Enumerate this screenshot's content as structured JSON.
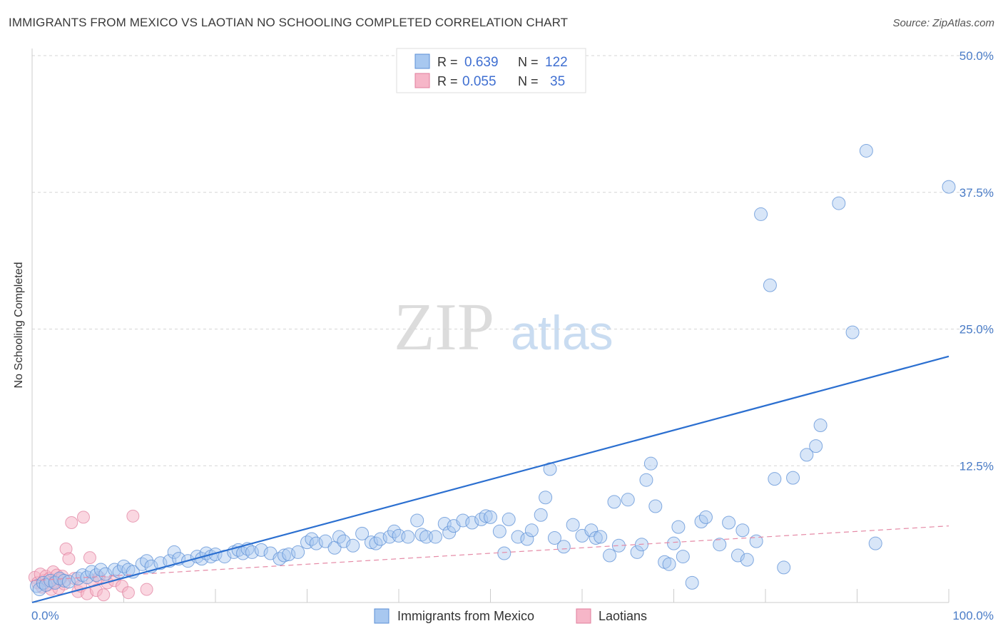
{
  "header": {
    "title": "IMMIGRANTS FROM MEXICO VS LAOTIAN NO SCHOOLING COMPLETED CORRELATION CHART",
    "source": "Source: ZipAtlas.com"
  },
  "watermark": {
    "zip": "ZIP",
    "atlas": "atlas"
  },
  "colors": {
    "series1_fill": "#a8c8f0",
    "series1_stroke": "#5b8fd6",
    "series1_line": "#2b6fd0",
    "series2_fill": "#f6b6c8",
    "series2_stroke": "#e07d9c",
    "series2_line": "#e58aa6",
    "accent_text": "#3f6fd1"
  },
  "legend": {
    "rows": [
      {
        "r_label": "R =",
        "r_value": "0.639",
        "n_label": "N =",
        "n_value": "122"
      },
      {
        "r_label": "R =",
        "r_value": "0.055",
        "n_label": "N =",
        "n_value": "35"
      }
    ]
  },
  "bottom_legend": [
    "Immigrants from Mexico",
    "Laotians"
  ],
  "chart_data": {
    "type": "scatter",
    "title": "IMMIGRANTS FROM MEXICO VS LAOTIAN NO SCHOOLING COMPLETED CORRELATION CHART",
    "xlabel": "",
    "ylabel": "No Schooling Completed",
    "xlim": [
      0,
      100
    ],
    "ylim": [
      0,
      50
    ],
    "x_tick_labels": [
      "0.0%",
      "100.0%"
    ],
    "y_ticks": [
      12.5,
      25.0,
      37.5,
      50.0
    ],
    "y_tick_labels": [
      "12.5%",
      "25.0%",
      "37.5%",
      "50.0%"
    ],
    "grid": "horizontal dashed",
    "legend_position": "top-center",
    "series": [
      {
        "name": "Immigrants from Mexico",
        "r": 0.639,
        "n": 122,
        "trend": {
          "x": [
            0,
            100
          ],
          "y": [
            0.0,
            22.5
          ]
        },
        "points": [
          [
            0.5,
            1.5
          ],
          [
            0.8,
            1.2
          ],
          [
            1.2,
            1.8
          ],
          [
            1.5,
            1.6
          ],
          [
            2.0,
            2.0
          ],
          [
            2.5,
            1.8
          ],
          [
            3.0,
            2.2
          ],
          [
            3.5,
            2.0
          ],
          [
            4.0,
            1.9
          ],
          [
            5.0,
            2.2
          ],
          [
            5.5,
            2.5
          ],
          [
            6.0,
            2.3
          ],
          [
            6.5,
            2.8
          ],
          [
            7.0,
            2.5
          ],
          [
            7.5,
            3.0
          ],
          [
            8.0,
            2.6
          ],
          [
            9.0,
            3.0
          ],
          [
            9.5,
            2.8
          ],
          [
            10.0,
            3.3
          ],
          [
            10.5,
            3.0
          ],
          [
            11.0,
            2.8
          ],
          [
            12.0,
            3.5
          ],
          [
            12.5,
            3.8
          ],
          [
            13.0,
            3.3
          ],
          [
            14.0,
            3.6
          ],
          [
            15.0,
            3.8
          ],
          [
            15.5,
            4.6
          ],
          [
            16.0,
            4.0
          ],
          [
            17.0,
            3.8
          ],
          [
            18.0,
            4.2
          ],
          [
            18.5,
            4.0
          ],
          [
            19.0,
            4.5
          ],
          [
            19.5,
            4.2
          ],
          [
            20.0,
            4.4
          ],
          [
            21.0,
            4.2
          ],
          [
            22.0,
            4.6
          ],
          [
            22.5,
            4.8
          ],
          [
            23.0,
            4.5
          ],
          [
            23.5,
            4.9
          ],
          [
            24.0,
            4.6
          ],
          [
            25.0,
            4.8
          ],
          [
            26.0,
            4.5
          ],
          [
            27.0,
            4.0
          ],
          [
            27.5,
            4.3
          ],
          [
            28.0,
            4.4
          ],
          [
            29.0,
            4.6
          ],
          [
            30.0,
            5.5
          ],
          [
            30.5,
            5.8
          ],
          [
            31.0,
            5.4
          ],
          [
            32.0,
            5.6
          ],
          [
            33.0,
            5.0
          ],
          [
            33.5,
            6.0
          ],
          [
            34.0,
            5.6
          ],
          [
            35.0,
            5.2
          ],
          [
            36.0,
            6.3
          ],
          [
            37.0,
            5.5
          ],
          [
            37.5,
            5.4
          ],
          [
            38.0,
            5.8
          ],
          [
            39.0,
            6.0
          ],
          [
            39.5,
            6.5
          ],
          [
            40.0,
            6.1
          ],
          [
            41.0,
            6.0
          ],
          [
            42.0,
            7.5
          ],
          [
            42.5,
            6.2
          ],
          [
            43.0,
            6.0
          ],
          [
            44.0,
            6.0
          ],
          [
            45.0,
            7.2
          ],
          [
            45.5,
            6.4
          ],
          [
            46.0,
            7.0
          ],
          [
            47.0,
            7.5
          ],
          [
            48.0,
            7.3
          ],
          [
            49.0,
            7.6
          ],
          [
            49.5,
            7.9
          ],
          [
            50.0,
            7.8
          ],
          [
            51.0,
            6.5
          ],
          [
            51.5,
            4.5
          ],
          [
            52.0,
            7.6
          ],
          [
            53.0,
            6.0
          ],
          [
            54.0,
            5.8
          ],
          [
            54.5,
            6.6
          ],
          [
            55.5,
            8.0
          ],
          [
            56.0,
            9.6
          ],
          [
            56.5,
            12.2
          ],
          [
            57.0,
            5.9
          ],
          [
            58.0,
            5.1
          ],
          [
            59.0,
            7.1
          ],
          [
            60.0,
            6.1
          ],
          [
            61.0,
            6.6
          ],
          [
            61.5,
            5.9
          ],
          [
            62.0,
            6.0
          ],
          [
            63.0,
            4.3
          ],
          [
            63.5,
            9.2
          ],
          [
            64.0,
            5.2
          ],
          [
            65.0,
            9.4
          ],
          [
            66.0,
            4.6
          ],
          [
            66.5,
            5.3
          ],
          [
            67.0,
            11.2
          ],
          [
            67.5,
            12.7
          ],
          [
            68.0,
            8.8
          ],
          [
            69.0,
            3.7
          ],
          [
            69.5,
            3.5
          ],
          [
            70.0,
            5.4
          ],
          [
            70.5,
            6.9
          ],
          [
            71.0,
            4.2
          ],
          [
            72.0,
            1.8
          ],
          [
            73.0,
            7.4
          ],
          [
            73.5,
            7.8
          ],
          [
            75.0,
            5.3
          ],
          [
            76.0,
            7.3
          ],
          [
            77.0,
            4.3
          ],
          [
            77.5,
            6.6
          ],
          [
            78.0,
            3.9
          ],
          [
            79.0,
            5.6
          ],
          [
            79.5,
            35.5
          ],
          [
            80.5,
            29.0
          ],
          [
            81.0,
            11.3
          ],
          [
            82.0,
            3.2
          ],
          [
            83.0,
            11.4
          ],
          [
            84.5,
            13.5
          ],
          [
            85.5,
            14.3
          ],
          [
            86.0,
            16.2
          ],
          [
            88.0,
            36.5
          ],
          [
            89.5,
            24.7
          ],
          [
            91.0,
            41.3
          ],
          [
            92.0,
            5.4
          ],
          [
            100.0,
            38.0
          ]
        ]
      },
      {
        "name": "Laotians",
        "r": 0.055,
        "n": 35,
        "trend": {
          "x": [
            0,
            100
          ],
          "y": [
            2.0,
            7.0
          ]
        },
        "points": [
          [
            0.3,
            2.3
          ],
          [
            0.6,
            1.8
          ],
          [
            0.9,
            2.6
          ],
          [
            1.1,
            1.4
          ],
          [
            1.3,
            2.0
          ],
          [
            1.5,
            2.4
          ],
          [
            1.7,
            1.6
          ],
          [
            1.9,
            2.2
          ],
          [
            2.1,
            1.2
          ],
          [
            2.3,
            2.8
          ],
          [
            2.5,
            1.9
          ],
          [
            2.7,
            2.5
          ],
          [
            2.9,
            1.3
          ],
          [
            3.1,
            2.1
          ],
          [
            3.3,
            2.4
          ],
          [
            3.5,
            1.7
          ],
          [
            3.7,
            4.9
          ],
          [
            4.0,
            4.0
          ],
          [
            4.3,
            7.3
          ],
          [
            4.6,
            2.2
          ],
          [
            5.0,
            1.0
          ],
          [
            5.3,
            1.5
          ],
          [
            5.6,
            7.8
          ],
          [
            6.0,
            0.8
          ],
          [
            6.3,
            4.1
          ],
          [
            6.6,
            2.0
          ],
          [
            7.0,
            1.1
          ],
          [
            7.3,
            2.3
          ],
          [
            7.8,
            0.7
          ],
          [
            8.2,
            1.8
          ],
          [
            9.0,
            2.0
          ],
          [
            9.8,
            1.5
          ],
          [
            10.5,
            0.9
          ],
          [
            11.0,
            7.9
          ],
          [
            12.5,
            1.2
          ]
        ]
      }
    ]
  }
}
